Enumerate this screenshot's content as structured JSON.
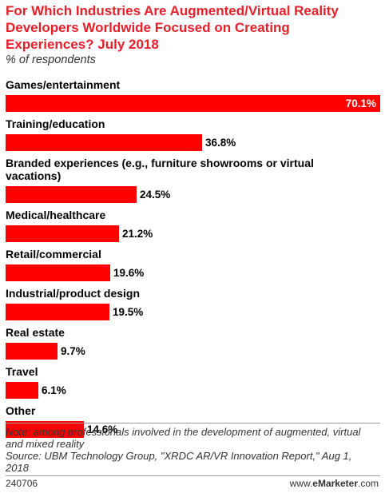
{
  "title": "For Which Industries Are Augmented/Virtual Reality\nDevelopers Worldwide Focused on Creating\nExperiences? July 2018",
  "subtitle": "% of respondents",
  "colors": {
    "title": "#e5202a",
    "bar": "#ff0000",
    "text": "#000000"
  },
  "chart_data": {
    "type": "bar",
    "orientation": "horizontal",
    "categories": [
      "Games/entertainment",
      "Training/education",
      "Branded experiences (e.g., furniture showrooms or virtual vacations)",
      "Medical/healthcare",
      "Retail/commercial",
      "Industrial/product design",
      "Real estate",
      "Travel",
      "Other"
    ],
    "values": [
      70.1,
      36.8,
      24.5,
      21.2,
      19.6,
      19.5,
      9.7,
      6.1,
      14.6
    ],
    "value_labels": [
      "70.1%",
      "36.8%",
      "24.5%",
      "21.2%",
      "19.6%",
      "19.5%",
      "9.7%",
      "6.1%",
      "14.6%"
    ],
    "xlim": [
      0,
      70.1
    ],
    "grid": false,
    "legend": "none"
  },
  "notes": {
    "note": "Note: among professionals involved in the development of augmented, virtual and mixed reality",
    "source": "Source: UBM Technology Group, \"XRDC AR/VR Innovation Report,\" Aug 1, 2018"
  },
  "footer": {
    "chart_id": "240706",
    "brand_prefix": "www.",
    "brand_bold": "eMarketer",
    "brand_suffix": ".com"
  }
}
